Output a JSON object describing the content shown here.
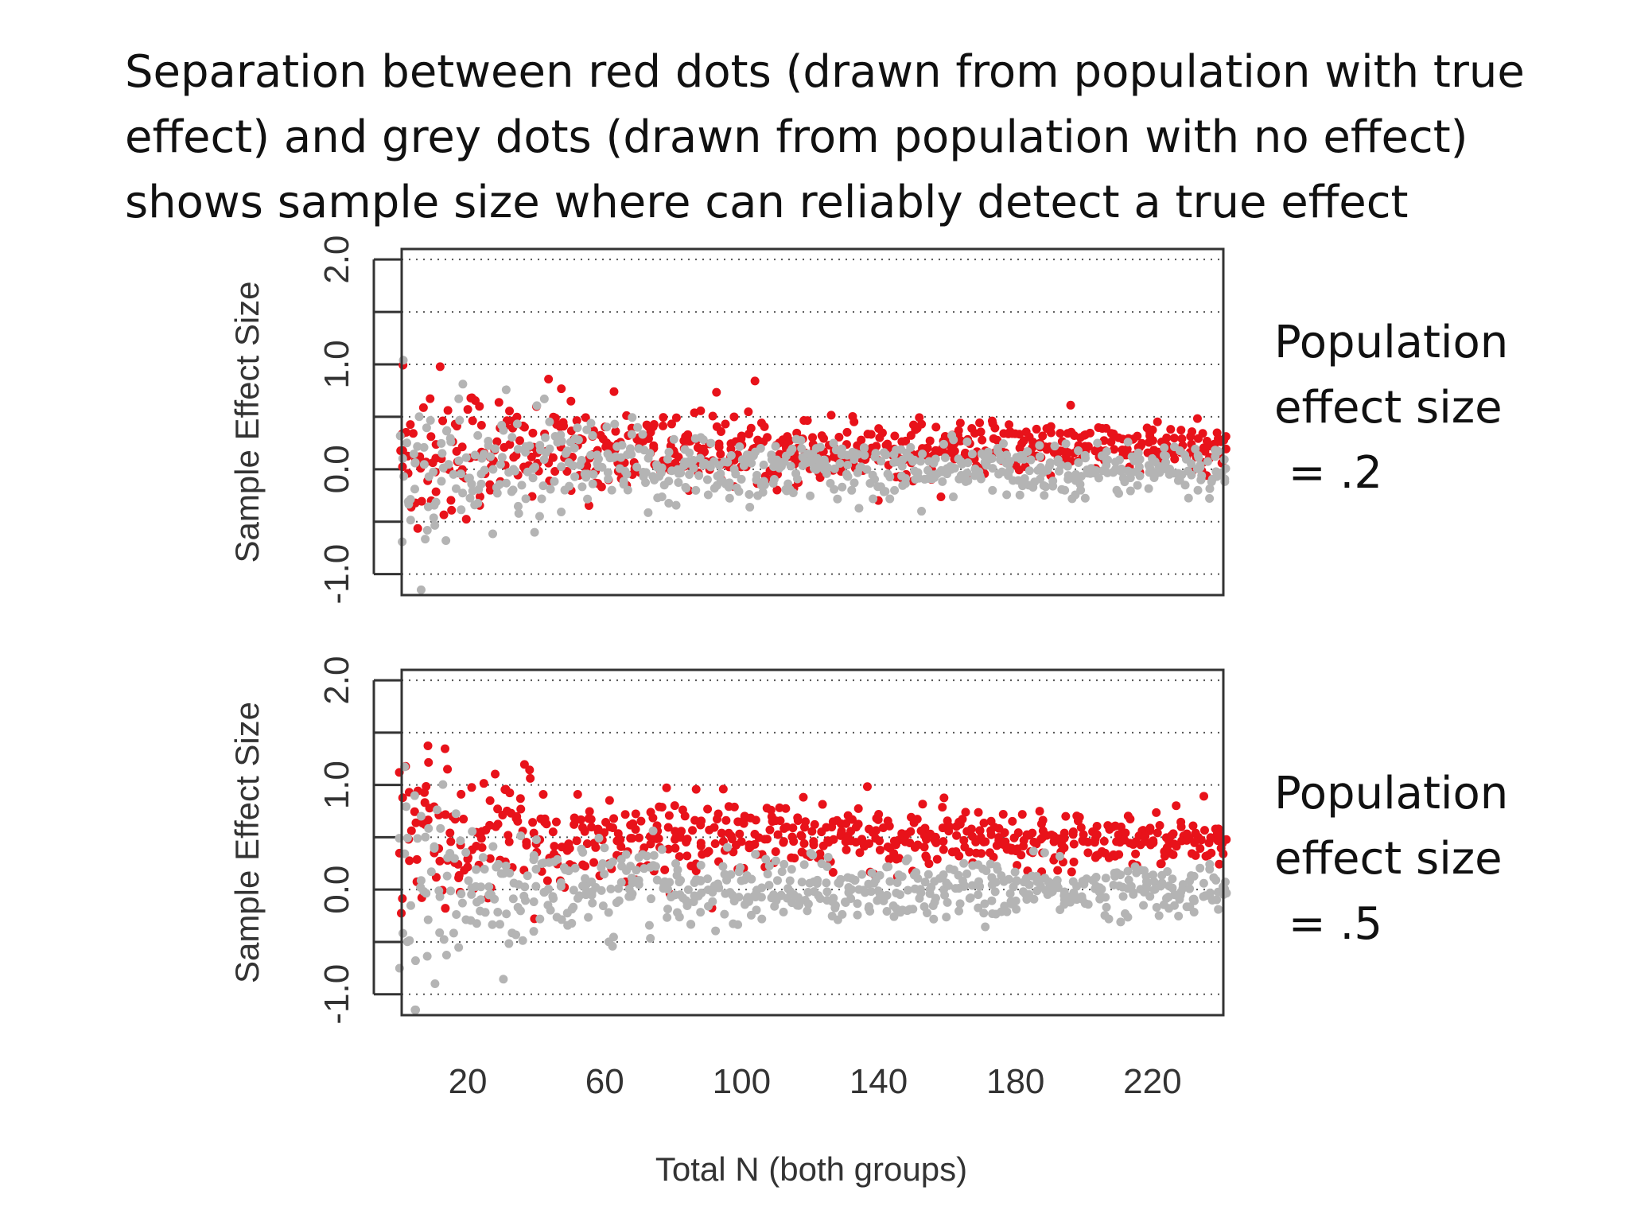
{
  "slide": {
    "title_lines": [
      "Separation between red dots (drawn from population with true",
      "effect) and grey dots (drawn from population with no effect)",
      "shows sample size where can reliably detect a true effect"
    ]
  },
  "colors": {
    "true_effect": "#e8121a",
    "no_effect": "#b4b4b4",
    "axis": "#333333",
    "grid": "#555555"
  },
  "chart_data": [
    {
      "type": "scatter",
      "side_label_lines": [
        "Population",
        "effect size",
        " = .2"
      ],
      "ylabel": "Sample Effect Size",
      "xlabel": "Total N (both groups)",
      "xlim": [
        10,
        250
      ],
      "ylim": [
        -1.2,
        2.1
      ],
      "yticks": [
        -1,
        -0.5,
        0,
        0.5,
        1,
        1.5,
        2
      ],
      "ytick_labels": [
        "-1.0",
        "",
        "0.0",
        "",
        "1.0",
        "",
        "2.0"
      ],
      "xticks": [
        20,
        60,
        100,
        140,
        180,
        220
      ],
      "xtick_labels": [
        "20",
        "60",
        "100",
        "140",
        "180",
        "220"
      ],
      "grid": true,
      "series": [
        {
          "name": "true effect",
          "color": "#e8121a",
          "x_range": [
            10,
            250
          ],
          "x_step": 2,
          "mean": 0.2,
          "points_per_x": 5
        },
        {
          "name": "no effect",
          "color": "#b4b4b4",
          "x_range": [
            10,
            250
          ],
          "x_step": 2,
          "mean": 0.0,
          "points_per_x": 5
        }
      ]
    },
    {
      "type": "scatter",
      "side_label_lines": [
        "Population",
        "effect size",
        " = .5"
      ],
      "ylabel": "Sample Effect Size",
      "xlabel": "Total N (both groups)",
      "xlim": [
        10,
        250
      ],
      "ylim": [
        -1.2,
        2.1
      ],
      "yticks": [
        -1,
        -0.5,
        0,
        0.5,
        1,
        1.5,
        2
      ],
      "ytick_labels": [
        "-1.0",
        "",
        "0.0",
        "",
        "1.0",
        "",
        "2.0"
      ],
      "xticks": [
        20,
        60,
        100,
        140,
        180,
        220
      ],
      "xtick_labels": [
        "20",
        "60",
        "100",
        "140",
        "180",
        "220"
      ],
      "grid": true,
      "series": [
        {
          "name": "true effect",
          "color": "#e8121a",
          "x_range": [
            10,
            250
          ],
          "x_step": 2,
          "mean": 0.5,
          "points_per_x": 5
        },
        {
          "name": "no effect",
          "color": "#b4b4b4",
          "x_range": [
            10,
            250
          ],
          "x_step": 2,
          "mean": 0.0,
          "points_per_x": 5
        }
      ]
    }
  ]
}
